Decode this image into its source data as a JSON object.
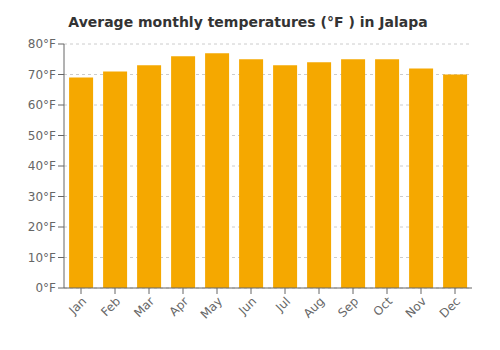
{
  "chart_data": {
    "type": "bar",
    "title": "Average monthly temperatures (°F ) in Jalapa",
    "categories": [
      "Jan",
      "Feb",
      "Mar",
      "Apr",
      "May",
      "Jun",
      "Jul",
      "Aug",
      "Sep",
      "Oct",
      "Nov",
      "Dec"
    ],
    "values": [
      69,
      71,
      73,
      76,
      77,
      75,
      73,
      74,
      75,
      75,
      72,
      70
    ],
    "color": "#F5A800",
    "ylim": [
      0,
      80
    ],
    "yticks": [
      {
        "value": 0,
        "label": "0°F"
      },
      {
        "value": 10,
        "label": "10°F"
      },
      {
        "value": 20,
        "label": "20°F"
      },
      {
        "value": 30,
        "label": "30°F"
      },
      {
        "value": 40,
        "label": "40°F"
      },
      {
        "value": 50,
        "label": "50°F"
      },
      {
        "value": 60,
        "label": "60°F"
      },
      {
        "value": 70,
        "label": "70°F"
      },
      {
        "value": 80,
        "label": "80°F"
      }
    ],
    "grid": true
  }
}
